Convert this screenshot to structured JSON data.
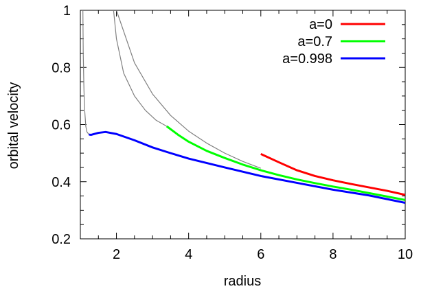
{
  "chart_data": {
    "type": "line",
    "title": "",
    "xlabel": "radius",
    "ylabel": "orbital velocity",
    "xlim": [
      1,
      10
    ],
    "ylim": [
      0.2,
      1
    ],
    "xticks": [
      2,
      4,
      6,
      8,
      10
    ],
    "yticks": [
      0.2,
      0.4,
      0.6,
      0.8,
      1
    ],
    "xtick_labels": [
      "2",
      "4",
      "6",
      "8",
      "10"
    ],
    "ytick_labels": [
      "0.2",
      "0.4",
      "0.6",
      "0.8",
      "1"
    ],
    "grid": false,
    "legend_position": "top-right",
    "series": [
      {
        "name": "a=0",
        "color": "#ff0000",
        "thin_color": "#808080",
        "thin_x": [
          2.0,
          2.5,
          3.0,
          3.5,
          4.0,
          4.5,
          5.0,
          5.5,
          6.0
        ],
        "thin_y": [
          1.0,
          0.816,
          0.707,
          0.632,
          0.577,
          0.535,
          0.5,
          0.471,
          0.447
        ],
        "x": [
          6.0,
          6.5,
          7.0,
          7.5,
          8.0,
          8.5,
          9.0,
          9.5,
          10.0
        ],
        "y": [
          0.497,
          0.468,
          0.44,
          0.42,
          0.405,
          0.392,
          0.38,
          0.368,
          0.354
        ]
      },
      {
        "name": "a=0.7",
        "color": "#00ff00",
        "thin_color": "#808080",
        "thin_x": [
          1.92,
          2.0,
          2.2,
          2.5,
          2.8,
          3.1,
          3.393
        ],
        "thin_y": [
          1.0,
          0.9,
          0.78,
          0.7,
          0.65,
          0.615,
          0.594
        ],
        "x": [
          3.393,
          3.7,
          4.0,
          4.5,
          5.0,
          5.5,
          6.0,
          6.5,
          7.0,
          7.5,
          8.0,
          8.5,
          9.0,
          9.5,
          10.0
        ],
        "y": [
          0.594,
          0.565,
          0.54,
          0.508,
          0.483,
          0.46,
          0.44,
          0.423,
          0.408,
          0.395,
          0.383,
          0.372,
          0.36,
          0.348,
          0.336
        ]
      },
      {
        "name": "a=0.998",
        "color": "#0000ff",
        "thin_color": "#808080",
        "thin_x": [
          1.07,
          1.08,
          1.1,
          1.12,
          1.15,
          1.18,
          1.237
        ],
        "thin_y": [
          1.0,
          0.85,
          0.72,
          0.65,
          0.595,
          0.575,
          0.565
        ],
        "x": [
          1.237,
          1.3,
          1.5,
          1.7,
          2.0,
          2.5,
          3.0,
          3.5,
          4.0,
          5.0,
          6.0,
          7.0,
          8.0,
          9.0,
          10.0
        ],
        "y": [
          0.565,
          0.564,
          0.571,
          0.574,
          0.567,
          0.545,
          0.52,
          0.5,
          0.481,
          0.45,
          0.42,
          0.396,
          0.372,
          0.352,
          0.326
        ]
      }
    ]
  }
}
